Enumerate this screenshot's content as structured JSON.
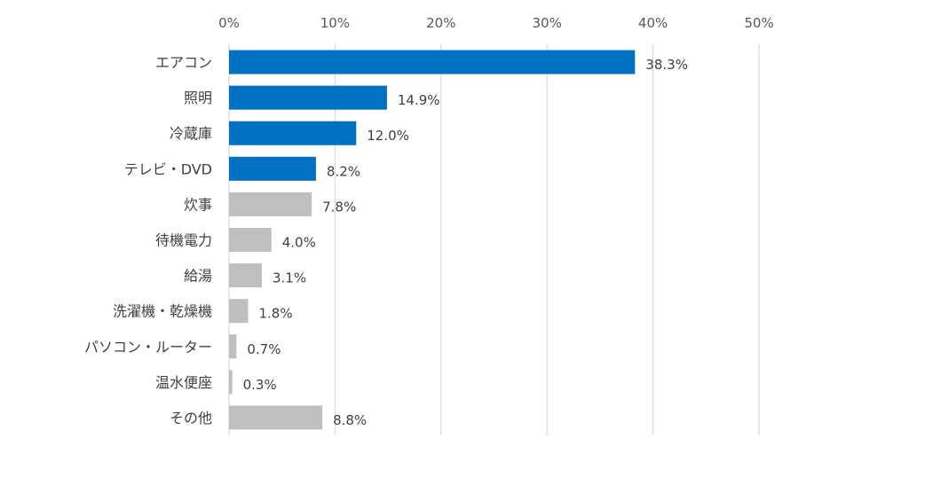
{
  "chart_data": {
    "type": "bar",
    "orientation": "horizontal",
    "title": "",
    "xlabel": "",
    "ylabel": "",
    "xlim": [
      0,
      50
    ],
    "x_ticks": [
      0,
      10,
      20,
      30,
      40,
      50
    ],
    "x_tick_labels": [
      "0%",
      "10%",
      "20%",
      "30%",
      "40%",
      "50%"
    ],
    "x_axis_position": "top",
    "grid": true,
    "legend": "none",
    "categories": [
      "エアコン",
      "照明",
      "冷蔵庫",
      "テレビ・DVD",
      "炊事",
      "待機電力",
      "給湯",
      "洗濯機・乾燥機",
      "パソコン・ルーター",
      "温水便座",
      "その他"
    ],
    "values": [
      38.3,
      14.9,
      12.0,
      8.2,
      7.8,
      4.0,
      3.1,
      1.8,
      0.7,
      0.3,
      8.8
    ],
    "value_labels": [
      "38.3%",
      "14.9%",
      "12.0%",
      "8.2%",
      "7.8%",
      "4.0%",
      "3.1%",
      "1.8%",
      "0.7%",
      "0.3%",
      "8.8%"
    ],
    "highlighted_count": 4,
    "colors": {
      "highlight": "#0070c0",
      "normal": "#bfbfbf",
      "gridline": "#d9d9d9",
      "text": "#404040",
      "tick_text": "#595959"
    }
  }
}
